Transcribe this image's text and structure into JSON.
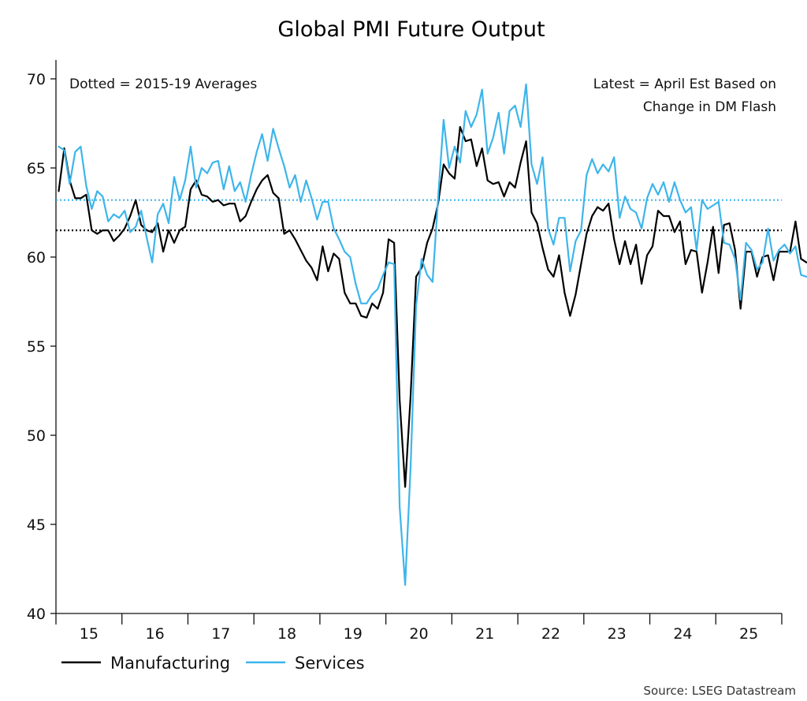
{
  "chart_data": {
    "type": "line",
    "title": "Global PMI Future Output",
    "xlabel": "",
    "ylabel": "",
    "ylim": [
      40,
      70
    ],
    "yticks": [
      40,
      45,
      50,
      55,
      60,
      65,
      70
    ],
    "xlim": [
      2015.0,
      2026.0
    ],
    "x_tick_labels": [
      "15",
      "16",
      "17",
      "18",
      "19",
      "20",
      "21",
      "22",
      "23",
      "24",
      "25"
    ],
    "x_start": "2015-01",
    "x_step": "monthly",
    "legend_placement": "bottom-left",
    "grid": false,
    "annotations": {
      "left": "Dotted = 2015-19 Averages",
      "right_line1": "Latest = April Est Based on",
      "right_line2": "Change in DM Flash"
    },
    "source": "Source: LSEG Datastream",
    "series": [
      {
        "name": "Manufacturing",
        "color": "#000000",
        "average_2015_19": 61.5,
        "values": [
          63.7,
          66.1,
          64.3,
          63.3,
          63.3,
          63.5,
          61.5,
          61.3,
          61.5,
          61.5,
          60.9,
          61.2,
          61.6,
          62.3,
          63.2,
          61.8,
          61.5,
          61.4,
          61.9,
          60.3,
          61.5,
          60.8,
          61.5,
          61.7,
          63.8,
          64.3,
          63.5,
          63.4,
          63.1,
          63.2,
          62.9,
          63.0,
          63.0,
          62.0,
          62.3,
          63.1,
          63.8,
          64.3,
          64.6,
          63.6,
          63.3,
          61.3,
          61.5,
          61.0,
          60.4,
          59.8,
          59.4,
          58.7,
          60.6,
          59.2,
          60.2,
          59.9,
          58.0,
          57.4,
          57.4,
          56.7,
          56.6,
          57.4,
          57.1,
          58.0,
          61.0,
          60.8,
          52.0,
          47.1,
          52.2,
          58.9,
          59.4,
          60.8,
          61.6,
          63.0,
          65.2,
          64.7,
          64.4,
          67.3,
          66.5,
          66.6,
          65.1,
          66.1,
          64.3,
          64.1,
          64.2,
          63.4,
          64.2,
          63.9,
          65.3,
          66.5,
          62.5,
          61.9,
          60.5,
          59.3,
          58.9,
          60.1,
          58.0,
          56.7,
          57.9,
          59.6,
          61.3,
          62.3,
          62.8,
          62.6,
          63.0,
          61.0,
          59.6,
          60.9,
          59.6,
          60.7,
          58.5,
          60.1,
          60.6,
          62.6,
          62.3,
          62.3,
          61.4,
          62.0,
          59.6,
          60.4,
          60.3,
          58.0,
          59.7,
          61.7,
          59.1,
          61.8,
          61.9,
          60.4,
          57.1,
          60.3,
          60.3,
          58.9,
          60.0,
          60.1,
          58.7,
          60.3,
          60.3,
          60.3,
          62.0,
          59.9,
          59.7
        ]
      },
      {
        "name": "Services",
        "color": "#3db5ea",
        "average_2015_19": 63.2,
        "values": [
          66.2,
          66.0,
          64.1,
          65.9,
          66.2,
          64.0,
          62.7,
          63.7,
          63.4,
          62.0,
          62.4,
          62.2,
          62.6,
          61.4,
          61.7,
          62.6,
          61.1,
          59.7,
          62.4,
          63.0,
          61.9,
          64.5,
          63.2,
          64.3,
          66.2,
          63.9,
          65.0,
          64.7,
          65.3,
          65.4,
          63.8,
          65.1,
          63.7,
          64.2,
          63.1,
          64.6,
          65.9,
          66.9,
          65.4,
          67.2,
          66.1,
          65.1,
          63.9,
          64.6,
          63.1,
          64.3,
          63.3,
          62.1,
          63.1,
          63.1,
          61.6,
          61.0,
          60.3,
          60.0,
          58.5,
          57.4,
          57.4,
          57.9,
          58.2,
          59.0,
          59.7,
          59.6,
          46.0,
          41.6,
          48.2,
          57.3,
          59.9,
          59.0,
          58.6,
          63.3,
          67.7,
          65.0,
          66.2,
          65.3,
          68.2,
          67.3,
          68.0,
          69.4,
          65.8,
          66.7,
          68.1,
          65.8,
          68.2,
          68.5,
          67.3,
          69.7,
          65.2,
          64.1,
          65.6,
          61.6,
          60.7,
          62.2,
          62.2,
          59.2,
          60.9,
          61.5,
          64.6,
          65.5,
          64.7,
          65.2,
          64.8,
          65.6,
          62.2,
          63.4,
          62.7,
          62.5,
          61.6,
          63.3,
          64.1,
          63.5,
          64.2,
          63.1,
          64.2,
          63.2,
          62.5,
          62.8,
          60.4,
          63.2,
          62.7,
          62.9,
          63.1,
          60.8,
          60.7,
          59.9,
          57.6,
          60.8,
          60.4,
          59.3,
          59.7,
          61.6,
          59.8,
          60.4,
          60.7,
          60.2,
          60.6,
          59.0,
          58.9
        ]
      }
    ]
  }
}
